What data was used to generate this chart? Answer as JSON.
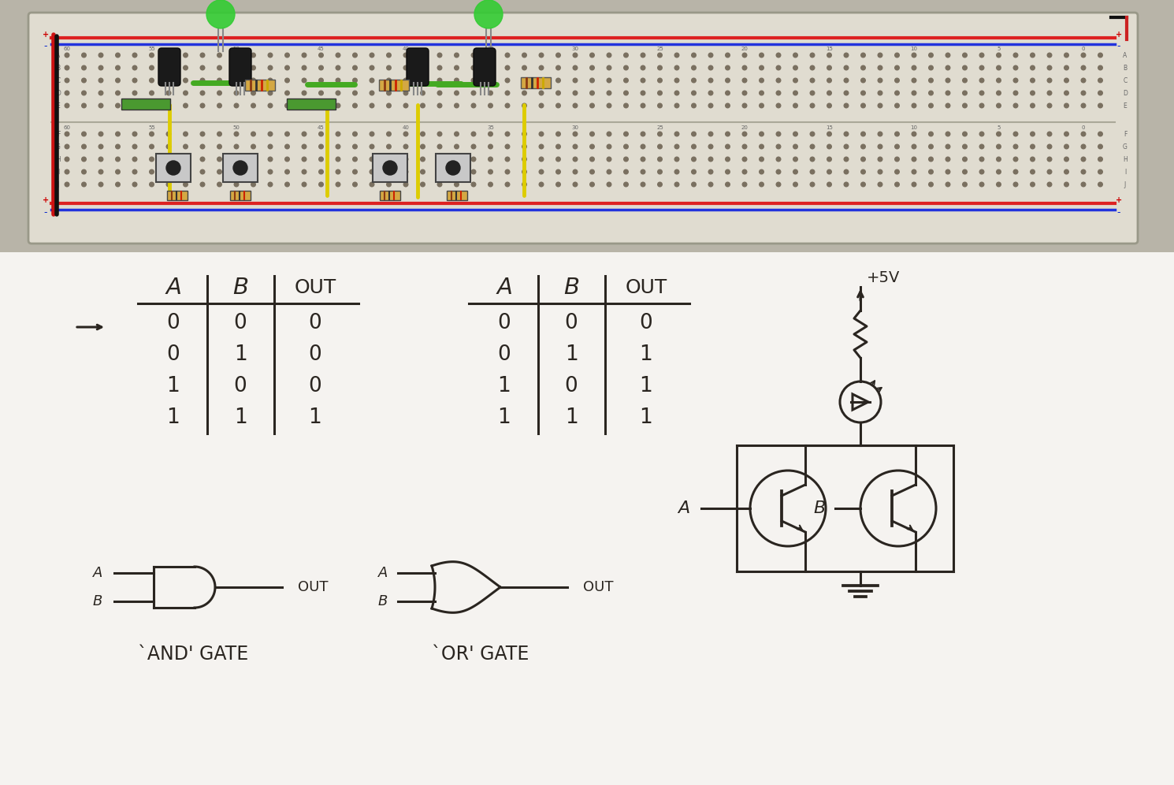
{
  "bg_color": "#c8c8c0",
  "paper_color": "#f2f0ee",
  "and_table": {
    "headers": [
      "A",
      "B",
      "OUT"
    ],
    "rows": [
      [
        "0",
        "0",
        "0"
      ],
      [
        "0",
        "1",
        "0"
      ],
      [
        "1",
        "0",
        "0"
      ],
      [
        "1",
        "1",
        "1"
      ]
    ]
  },
  "or_table": {
    "headers": [
      "A",
      "B",
      "OUT"
    ],
    "rows": [
      [
        "0",
        "0",
        "0"
      ],
      [
        "0",
        "1",
        "1"
      ],
      [
        "1",
        "0",
        "1"
      ],
      [
        "1",
        "1",
        "1"
      ]
    ]
  },
  "and_label": "`AND' GATE",
  "or_label": "`OR' GATE",
  "vcc_label": "+5V",
  "ink_color": "#2a2520",
  "line_width": 2.2
}
